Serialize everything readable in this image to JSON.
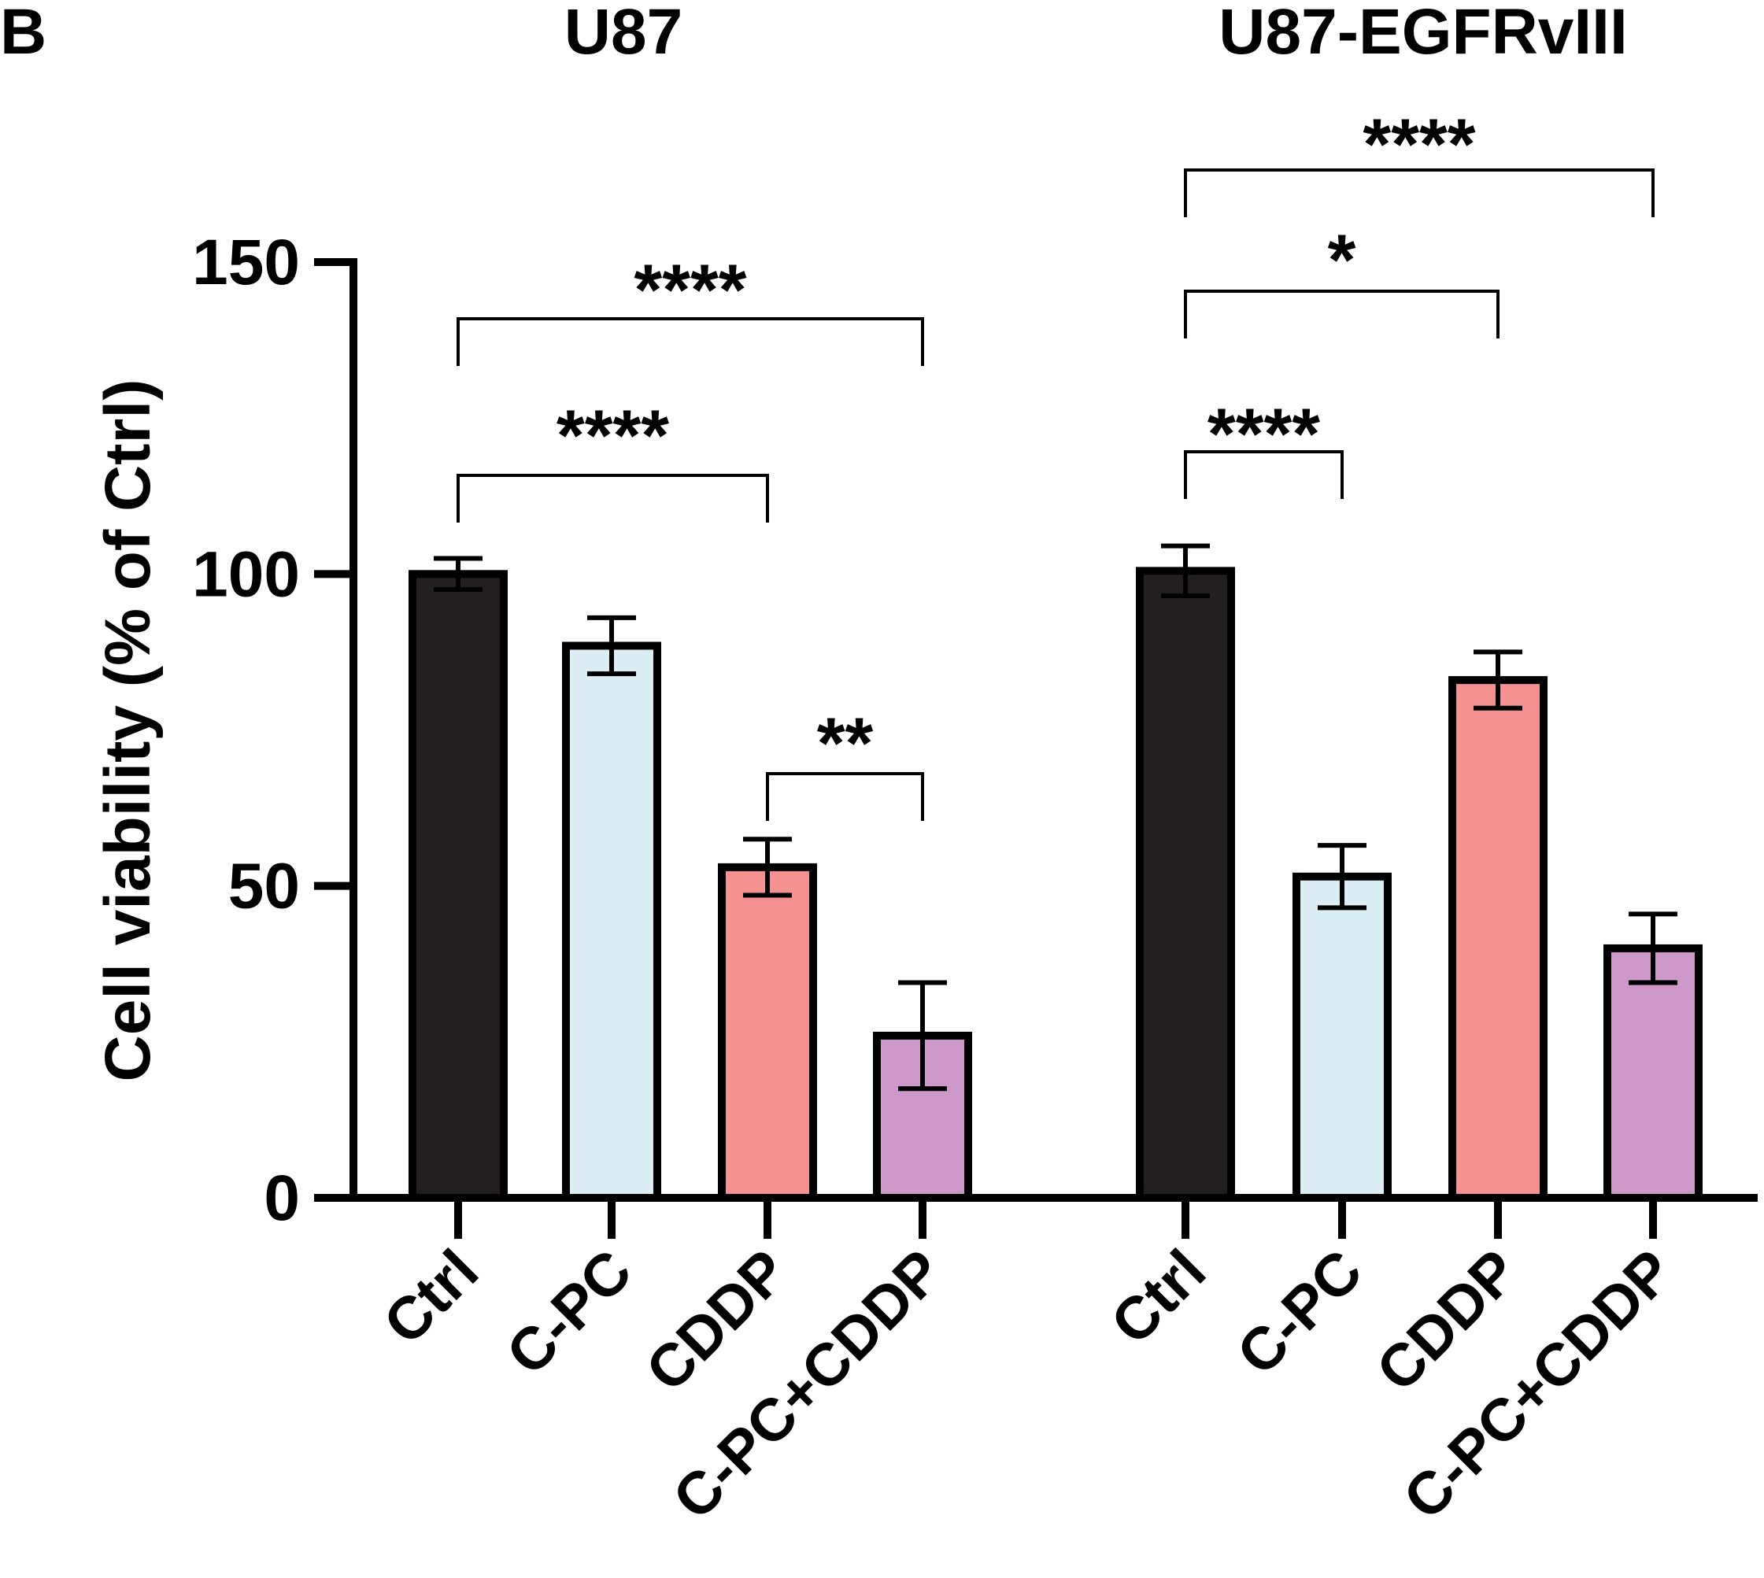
{
  "panel_label": "B",
  "chart_data": {
    "type": "bar",
    "ylabel": "Cell viability (% of Ctrl)",
    "ylim": [
      0,
      150
    ],
    "yticks": [
      0,
      50,
      100,
      150
    ],
    "groups": [
      {
        "title": "U87",
        "categories": [
          "Ctrl",
          "C-PC",
          "CDDP",
          "C-PC+CDDP"
        ],
        "values": [
          100,
          88.5,
          53,
          26
        ],
        "errors": [
          2.5,
          4.5,
          4.5,
          8.5
        ],
        "significance": [
          {
            "from": 0,
            "to": 2,
            "label": "****"
          },
          {
            "from": 0,
            "to": 3,
            "label": "****"
          },
          {
            "from": 2,
            "to": 3,
            "label": "**"
          }
        ]
      },
      {
        "title": "U87-EGFRvIII",
        "categories": [
          "Ctrl",
          "C-PC",
          "CDDP",
          "C-PC+CDDP"
        ],
        "values": [
          100.5,
          51.5,
          83,
          40
        ],
        "errors": [
          4,
          5,
          4.5,
          5.5
        ],
        "significance": [
          {
            "from": 0,
            "to": 1,
            "label": "****"
          },
          {
            "from": 0,
            "to": 2,
            "label": "*"
          },
          {
            "from": 0,
            "to": 3,
            "label": "****"
          }
        ]
      }
    ],
    "colors": [
      "#231f20",
      "#daeef3",
      "#f49191",
      "#cc99c9"
    ]
  }
}
